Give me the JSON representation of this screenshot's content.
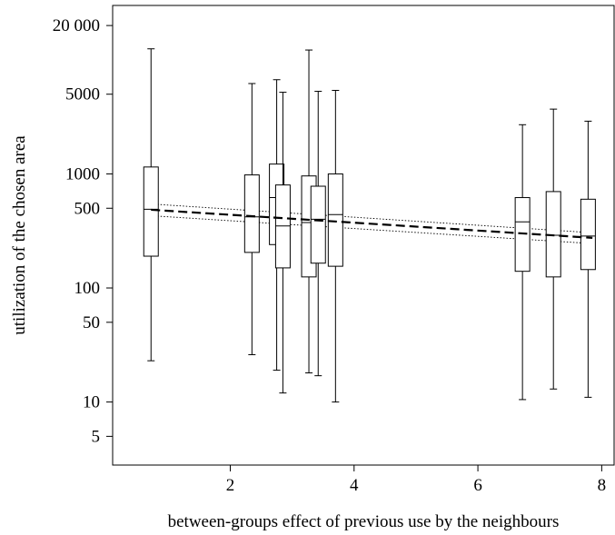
{
  "chart_data": {
    "type": "boxplot",
    "title": "",
    "xlabel": "between-groups effect of previous use by the neighbours",
    "ylabel": "utilization of the chosen area",
    "x_scale": "linear",
    "y_scale": "log",
    "xlim": [
      0.1,
      8.2
    ],
    "ylim": [
      2.8,
      30000
    ],
    "x_ticks": [
      2,
      4,
      6,
      8
    ],
    "x_tick_labels": [
      "2",
      "4",
      "6",
      "8"
    ],
    "y_ticks": [
      5,
      10,
      50,
      100,
      500,
      1000,
      5000,
      20000
    ],
    "y_tick_labels": [
      "5",
      "10",
      "50",
      "100",
      "500",
      "1000",
      "5000",
      "20 000"
    ],
    "grid": false,
    "boxes": [
      {
        "x": 0.72,
        "min": 23,
        "q1": 190,
        "median": 490,
        "q3": 1150,
        "max": 12500
      },
      {
        "x": 2.35,
        "min": 26,
        "q1": 205,
        "median": 420,
        "q3": 980,
        "max": 6200
      },
      {
        "x": 2.75,
        "min": 19,
        "q1": 240,
        "median": 620,
        "q3": 1220,
        "max": 6700
      },
      {
        "x": 2.85,
        "min": 12,
        "q1": 150,
        "median": 350,
        "q3": 800,
        "max": 5200
      },
      {
        "x": 3.27,
        "min": 18,
        "q1": 125,
        "median": 375,
        "q3": 960,
        "max": 12200
      },
      {
        "x": 3.42,
        "min": 17,
        "q1": 165,
        "median": 400,
        "q3": 780,
        "max": 5300
      },
      {
        "x": 3.7,
        "min": 10,
        "q1": 155,
        "median": 440,
        "q3": 1000,
        "max": 5400
      },
      {
        "x": 6.72,
        "min": 10.5,
        "q1": 140,
        "median": 380,
        "q3": 620,
        "max": 2700
      },
      {
        "x": 7.22,
        "min": 13,
        "q1": 125,
        "median": 290,
        "q3": 700,
        "max": 3700
      },
      {
        "x": 7.78,
        "min": 11,
        "q1": 145,
        "median": 285,
        "q3": 600,
        "max": 2900
      }
    ],
    "fit": {
      "x": [
        0.72,
        7.85
      ],
      "y": [
        485,
        275
      ],
      "ci_upper": [
        545,
        305
      ],
      "ci_lower": [
        430,
        245
      ]
    }
  }
}
